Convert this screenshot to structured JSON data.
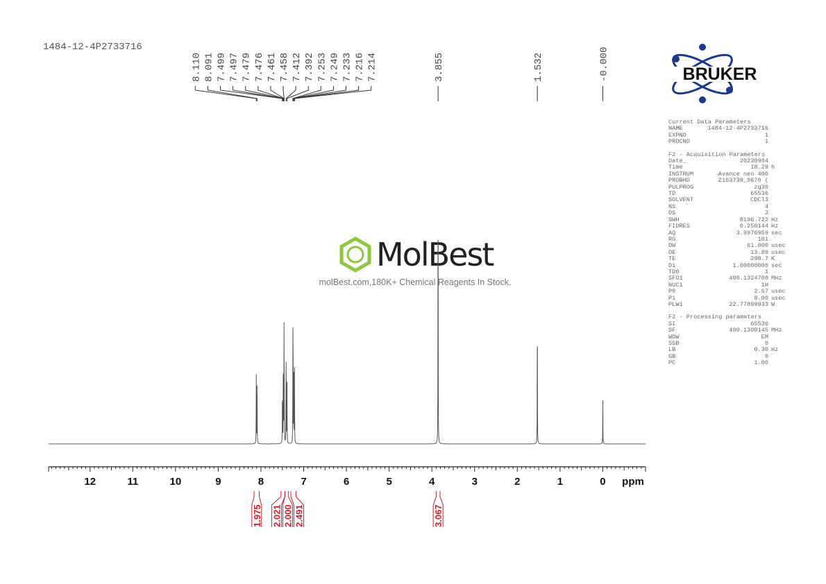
{
  "title": "1484-12-4P2733716",
  "logo": {
    "text": "BRUKER",
    "color": "#1b3a8c"
  },
  "watermark": {
    "brand": "MolBest",
    "tagline": "molBest.com,180K+ Chemical Reagents In Stock.",
    "color": "#8dc63f"
  },
  "parameters": {
    "current": {
      "heading": "Current Data Parameters",
      "rows": [
        [
          "NAME",
          "1484-12-4P2733716",
          ""
        ],
        [
          "EXPNO",
          "1",
          ""
        ],
        [
          "PROCNO",
          "1",
          ""
        ]
      ]
    },
    "acquisition": {
      "heading": "F2 - Acquisition Parameters",
      "rows": [
        [
          "Date_",
          "20230904",
          ""
        ],
        [
          "Time",
          "18.29",
          "h"
        ],
        [
          "INSTRUM",
          "Avance neo 400",
          ""
        ],
        [
          "PROBHD",
          "Z163739_0670 (",
          ""
        ],
        [
          "PULPROG",
          "zg30",
          ""
        ],
        [
          "TD",
          "65536",
          ""
        ],
        [
          "SOLVENT",
          "CDCl3",
          ""
        ],
        [
          "NS",
          "4",
          ""
        ],
        [
          "DS",
          "2",
          ""
        ],
        [
          "SWH",
          "8196.722",
          "Hz"
        ],
        [
          "FIDRES",
          "0.250144",
          "Hz"
        ],
        [
          "AQ",
          "3.9976959",
          "sec"
        ],
        [
          "RG",
          "101",
          ""
        ],
        [
          "DW",
          "61.000",
          "usec"
        ],
        [
          "DE",
          "13.89",
          "usec"
        ],
        [
          "TE",
          "298.7",
          "K"
        ],
        [
          "D1",
          "1.00000000",
          "sec"
        ],
        [
          "TD0",
          "1",
          ""
        ],
        [
          "SFO1",
          "400.1324708",
          "MHz"
        ],
        [
          "NUC1",
          "1H",
          ""
        ],
        [
          "P0",
          "2.67",
          "usec"
        ],
        [
          "P1",
          "8.00",
          "usec"
        ],
        [
          "PLW1",
          "22.77899933",
          "W"
        ]
      ]
    },
    "processing": {
      "heading": "F2 - Processing parameters",
      "rows": [
        [
          "SI",
          "65536",
          ""
        ],
        [
          "SF",
          "400.1300145",
          "MHz"
        ],
        [
          "WDW",
          "EM",
          ""
        ],
        [
          "SSB",
          "0",
          ""
        ],
        [
          "LB",
          "0.30",
          "Hz"
        ],
        [
          "GB",
          "0",
          ""
        ],
        [
          "PC",
          "1.00",
          ""
        ]
      ]
    }
  },
  "chart_data": {
    "type": "line",
    "xlabel": "ppm",
    "xlim": [
      12.97,
      -1.0
    ],
    "x_ticks": [
      "12",
      "11",
      "10",
      "9",
      "8",
      "7",
      "6",
      "5",
      "4",
      "3",
      "2",
      "1",
      "0"
    ],
    "grid": false,
    "peaks": [
      {
        "ppm": 8.11,
        "label": "8.110",
        "intensity": 0.24
      },
      {
        "ppm": 8.091,
        "label": "8.091",
        "intensity": 0.245
      },
      {
        "ppm": 7.499,
        "label": "7.499",
        "intensity": 0.09
      },
      {
        "ppm": 7.497,
        "label": "7.497",
        "intensity": 0.09
      },
      {
        "ppm": 7.479,
        "label": "7.479",
        "intensity": 0.15
      },
      {
        "ppm": 7.476,
        "label": "7.476",
        "intensity": 0.15
      },
      {
        "ppm": 7.461,
        "label": "7.461",
        "intensity": 0.24
      },
      {
        "ppm": 7.458,
        "label": "7.458",
        "intensity": 0.24
      },
      {
        "ppm": 7.412,
        "label": "7.412",
        "intensity": 0.33
      },
      {
        "ppm": 7.392,
        "label": "7.392",
        "intensity": 0.28
      },
      {
        "ppm": 7.253,
        "label": "7.253",
        "intensity": 0.27
      },
      {
        "ppm": 7.249,
        "label": "7.249",
        "intensity": 0.26
      },
      {
        "ppm": 7.233,
        "label": "7.233",
        "intensity": 0.25
      },
      {
        "ppm": 7.216,
        "label": "7.216",
        "intensity": 0.13
      },
      {
        "ppm": 7.214,
        "label": "7.214",
        "intensity": 0.13
      },
      {
        "ppm": 3.855,
        "label": "3.855",
        "intensity": 1.0
      },
      {
        "ppm": 1.532,
        "label": "1.532",
        "intensity": 0.47
      },
      {
        "ppm": 0.0,
        "label": "-0.000",
        "intensity": 0.15
      }
    ],
    "integrals": [
      {
        "from": 8.16,
        "to": 8.04,
        "value": "1.975"
      },
      {
        "from": 7.53,
        "to": 7.44,
        "value": "2.021"
      },
      {
        "from": 7.44,
        "to": 7.36,
        "value": "2.000"
      },
      {
        "from": 7.3,
        "to": 7.18,
        "value": "2.491"
      },
      {
        "from": 3.9,
        "to": 3.81,
        "value": "3.067"
      }
    ],
    "line_color": "#555555",
    "integral_color": "#d0202a"
  }
}
